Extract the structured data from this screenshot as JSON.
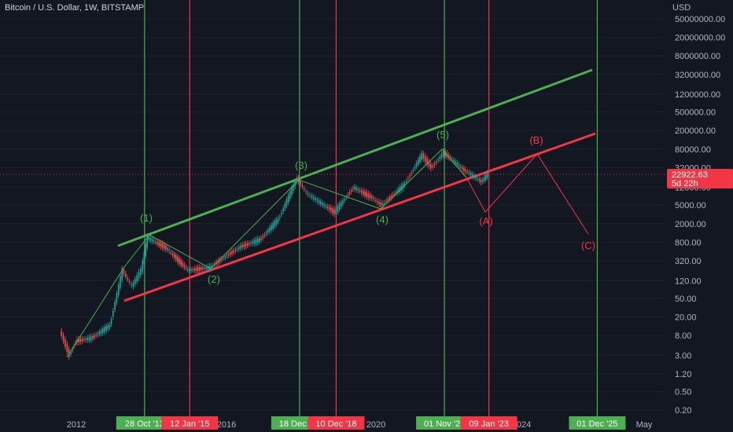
{
  "header": {
    "title": "Bitcoin / U.S. Dollar, 1W, BITSTAMP"
  },
  "colors": {
    "background": "#131722",
    "grid": "#1e222d",
    "green": "#4caf50",
    "red": "#f23645",
    "candle_up": "#26a69a",
    "candle_down": "#ef5350",
    "price_tag": "#f23645"
  },
  "chart_data": {
    "type": "line",
    "y_scale": "log",
    "y_unit": "USD",
    "y_ticks": [
      "50000000.00",
      "20000000.00",
      "8000000.00",
      "3200000.00",
      "1200000.00",
      "500000.00",
      "200000.00",
      "80000.00",
      "32000.00",
      "12000.00",
      "5000.00",
      "2000.00",
      "800.00",
      "320.00",
      "120.00",
      "50.00",
      "20.00",
      "8.00",
      "3.00",
      "1.20",
      "0.50",
      "0.20"
    ],
    "x_ticks": [
      "2012",
      "2016",
      "2020",
      "2024",
      "May"
    ],
    "current_price": {
      "value": "22922.63",
      "countdown": "5d 22h"
    },
    "vertical_markers": [
      {
        "date": "28 Oct '13",
        "color": "green"
      },
      {
        "date": "12 Jan '15",
        "color": "red"
      },
      {
        "date": "18 Dec '17",
        "color": "green"
      },
      {
        "date": "10 Dec '18",
        "color": "red"
      },
      {
        "date": "01 Nov '21",
        "color": "green"
      },
      {
        "date": "09 Jan '23",
        "color": "red"
      },
      {
        "date": "01 Dec '25",
        "color": "green"
      }
    ],
    "wave_labels": [
      {
        "text": "(1)",
        "color": "green"
      },
      {
        "text": "(2)",
        "color": "green"
      },
      {
        "text": "(3)",
        "color": "green"
      },
      {
        "text": "(4)",
        "color": "green"
      },
      {
        "text": "(5)",
        "color": "green"
      },
      {
        "text": "(A)",
        "color": "red"
      },
      {
        "text": "(B)",
        "color": "red"
      },
      {
        "text": "(C)",
        "color": "red"
      }
    ],
    "price_series": {
      "name": "BTCUSD",
      "points": [
        [
          "2011-08",
          10
        ],
        [
          "2011-11",
          3
        ],
        [
          "2012-01",
          6
        ],
        [
          "2012-06",
          7
        ],
        [
          "2012-12",
          13
        ],
        [
          "2013-04",
          200
        ],
        [
          "2013-07",
          90
        ],
        [
          "2013-10",
          200
        ],
        [
          "2013-12",
          1000
        ],
        [
          "2014-06",
          600
        ],
        [
          "2015-01",
          200
        ],
        [
          "2015-08",
          230
        ],
        [
          "2016-01",
          400
        ],
        [
          "2016-06",
          650
        ],
        [
          "2016-12",
          900
        ],
        [
          "2017-06",
          2500
        ],
        [
          "2017-12",
          19000
        ],
        [
          "2018-03",
          9000
        ],
        [
          "2018-06",
          6500
        ],
        [
          "2018-12",
          3500
        ],
        [
          "2019-06",
          12000
        ],
        [
          "2019-12",
          7200
        ],
        [
          "2020-03",
          5000
        ],
        [
          "2020-10",
          13000
        ],
        [
          "2021-04",
          60000
        ],
        [
          "2021-07",
          32000
        ],
        [
          "2021-11",
          67000
        ],
        [
          "2022-05",
          30000
        ],
        [
          "2022-11",
          16000
        ],
        [
          "2023-01",
          22900
        ]
      ]
    },
    "projection": {
      "points": [
        [
          "2023-01",
          22900
        ],
        [
          "2023-06",
          5000
        ],
        [
          "2024-06",
          70000
        ],
        [
          "2025-12",
          1500
        ]
      ]
    }
  }
}
